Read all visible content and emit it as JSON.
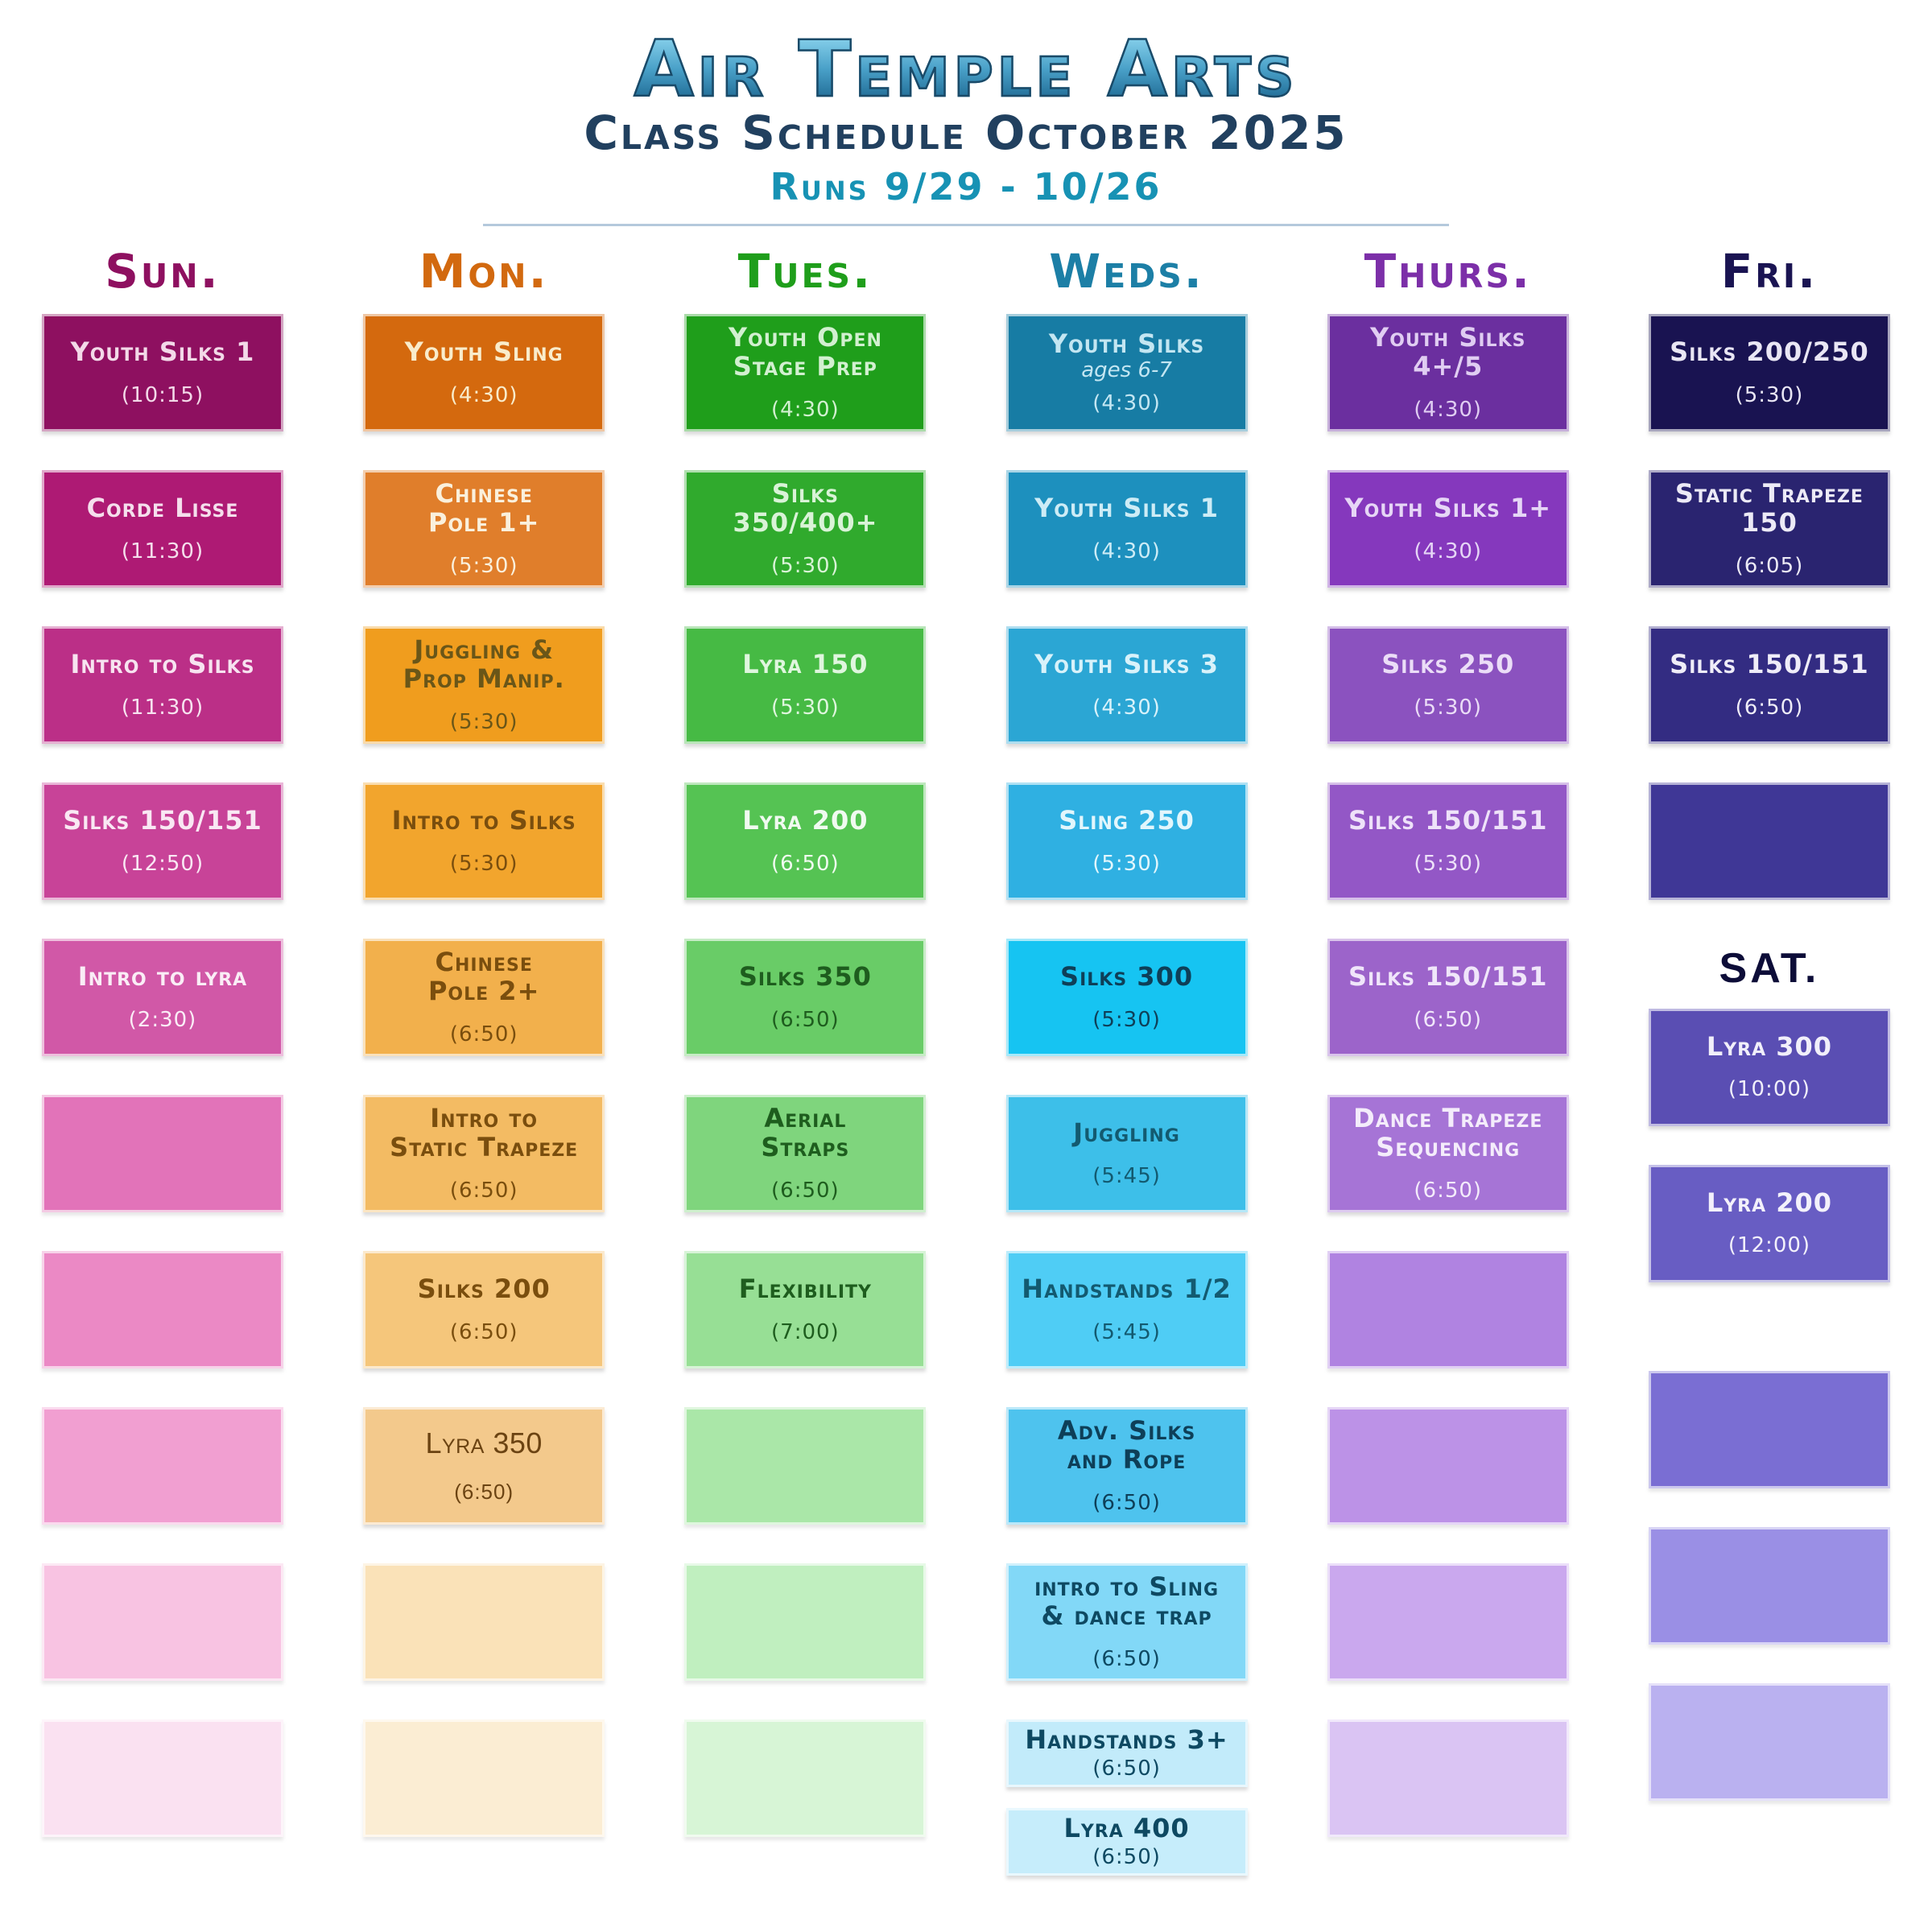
{
  "header": {
    "title": "Air Temple Arts",
    "subtitle": "Class Schedule October 2025",
    "runs": "Runs 9/29 - 10/26",
    "title_colors": [
      "#93DAF2",
      "#155E88"
    ],
    "subtitle_color": "#21405F",
    "runs_color": "#1792B4"
  },
  "columns": [
    {
      "sections": [
        {
          "label": "Sun.",
          "label_color": "#8E1060",
          "blocks": [
            {
              "name": "Youth Silks 1",
              "time": "(10:15)",
              "bg": "#8E1060",
              "fg": "#F3D9E8"
            },
            {
              "name": "Corde Lisse",
              "time": "(11:30)",
              "bg": "#AE1A74",
              "fg": "#F5DEEC"
            },
            {
              "name": "Intro to Silks",
              "time": "(11:30)",
              "bg": "#BB2F87",
              "fg": "#F7E3F0"
            },
            {
              "name": "Silks 150/151",
              "time": "(12:50)",
              "bg": "#C84398",
              "fg": "#F9E8F3"
            },
            {
              "name": "Intro to lyra",
              "time": "(2:30)",
              "bg": "#D158A7",
              "fg": "#FAEDF6"
            },
            {
              "bg": "#E273B9"
            },
            {
              "bg": "#EB89C5"
            },
            {
              "bg": "#F19FD1"
            },
            {
              "bg": "#F8C3E2"
            },
            {
              "bg": "#FAE1F1"
            }
          ]
        }
      ]
    },
    {
      "sections": [
        {
          "label": "Mon.",
          "label_color": "#D2690F",
          "blocks": [
            {
              "name": "Youth Sling",
              "time": "(4:30)",
              "bg": "#D4690E",
              "fg": "#F9ECCB"
            },
            {
              "name": "Chinese\nPole 1+",
              "time": "(5:30)",
              "bg": "#E07E2B",
              "fg": "#FAF0DC"
            },
            {
              "name": "Juggling &\nProp Manip.",
              "time": "(5:30)",
              "bg": "#F09D1E",
              "fg": "#6A5618"
            },
            {
              "name": "Intro to Silks",
              "time": "(5:30)",
              "bg": "#F2A52D",
              "fg": "#7A4E0E"
            },
            {
              "name": "Chinese\nPole 2+",
              "time": "(6:50)",
              "bg": "#F2B04C",
              "fg": "#7A4E0E"
            },
            {
              "name": "Intro to\nStatic Trapeze",
              "time": "(6:50)",
              "bg": "#F3BB63",
              "fg": "#7A4E0E"
            },
            {
              "name": "Silks 200",
              "time": "(6:50)",
              "bg": "#F5C67B",
              "fg": "#7A4E0E"
            },
            {
              "name": "Lyra 350",
              "time": "(6:50)",
              "bg": "#F3C98C",
              "fg": "#6B4312",
              "alt": true
            },
            {
              "bg": "#FAE2B8"
            },
            {
              "bg": "#FBEDD3"
            }
          ]
        }
      ]
    },
    {
      "sections": [
        {
          "label": "Tues.",
          "label_color": "#1F9E1B",
          "blocks": [
            {
              "name": "Youth Open\nStage Prep",
              "time": "(4:30)",
              "bg": "#1F9E1B",
              "fg": "#D2F0D0"
            },
            {
              "name": "Silks\n350/400+",
              "time": "(5:30)",
              "bg": "#30AA2D",
              "fg": "#D9F3D7"
            },
            {
              "name": "Lyra 150",
              "time": "(5:30)",
              "bg": "#46BA44",
              "fg": "#DFF6DE"
            },
            {
              "name": "Lyra 200",
              "time": "(6:50)",
              "bg": "#55C353",
              "fg": "#F0FAF0"
            },
            {
              "name": "Silks 350",
              "time": "(6:50)",
              "bg": "#69CC67",
              "fg": "#1E5D1E"
            },
            {
              "name": "Aerial\nStraps",
              "time": "(6:50)",
              "bg": "#7FD57D",
              "fg": "#1E5D1E"
            },
            {
              "name": "Flexibility",
              "time": "(7:00)",
              "bg": "#97DF95",
              "fg": "#1E5D1E"
            },
            {
              "bg": "#AAE7A8"
            },
            {
              "bg": "#C0EFBF"
            },
            {
              "bg": "#D7F5D6"
            }
          ]
        }
      ]
    },
    {
      "sections": [
        {
          "label": "Weds.",
          "label_color": "#1C7FA6",
          "blocks": [
            {
              "name": "Youth Silks",
              "note": "ages 6-7",
              "time": "(4:30)",
              "bg": "#177CA4",
              "fg": "#C3E6F2"
            },
            {
              "name": "Youth Silks 1",
              "time": "(4:30)",
              "bg": "#1D90BE",
              "fg": "#CDECF6"
            },
            {
              "name": "Youth Silks 3",
              "time": "(4:30)",
              "bg": "#2BA6D4",
              "fg": "#D8F2FA"
            },
            {
              "name": "Sling 250",
              "time": "(5:30)",
              "bg": "#2FB0E2",
              "fg": "#E2F6FC"
            },
            {
              "name": "Silks 300",
              "time": "(5:30)",
              "bg": "#16C4F2",
              "fg": "#0E3F58"
            },
            {
              "name": "Juggling",
              "time": "(5:45)",
              "bg": "#3DBFE9",
              "fg": "#135A70"
            },
            {
              "name": "Handstands 1/2",
              "time": "(5:45)",
              "bg": "#4FCDF5",
              "fg": "#135A70"
            },
            {
              "name": "Adv. Silks\nand Rope",
              "time": "(6:50)",
              "bg": "#4EC3EE",
              "fg": "#0E3F58"
            },
            {
              "name": "intro to Sling\n& dance trap",
              "time": "(6:50)",
              "bg": "#82D8F7",
              "fg": "#0E4962"
            },
            {
              "name": "Handstands 3+",
              "time": "(6:50)",
              "bg": "#C2EBFA",
              "fg": "#0E4962",
              "small": true
            },
            {
              "name": "Lyra 400",
              "time": "(6:50)",
              "bg": "#C6EDFB",
              "fg": "#0E4962",
              "small": true
            }
          ]
        }
      ]
    },
    {
      "sections": [
        {
          "label": "Thurs.",
          "label_color": "#7C2FA8",
          "blocks": [
            {
              "name": "Youth Silks\n4+/5",
              "time": "(4:30)",
              "bg": "#6B2F9F",
              "fg": "#E0CDF2"
            },
            {
              "name": "Youth Silks 1+",
              "time": "(4:30)",
              "bg": "#8538BD",
              "fg": "#E6D6F6"
            },
            {
              "name": "Silks 250",
              "time": "(5:30)",
              "bg": "#8B52BF",
              "fg": "#EBDDF7"
            },
            {
              "name": "Silks 150/151",
              "time": "(5:30)",
              "bg": "#9357C6",
              "fg": "#EEE2F9"
            },
            {
              "name": "Silks 150/151",
              "time": "(6:50)",
              "bg": "#9C64CA",
              "fg": "#F0E6FA"
            },
            {
              "name": "Dance Trapeze\nSequencing",
              "time": "(6:50)",
              "bg": "#A674D6",
              "fg": "#F4ECFB"
            },
            {
              "bg": "#B083E1"
            },
            {
              "bg": "#BC92E7"
            },
            {
              "bg": "#CAA8EE"
            },
            {
              "bg": "#DAC4F3"
            }
          ]
        }
      ]
    },
    {
      "sections": [
        {
          "label": "Fri.",
          "label_color": "#1A1452",
          "blocks": [
            {
              "name": "Silks 200/250",
              "time": "(5:30)",
              "bg": "#191351",
              "fg": "#E9E6F4"
            },
            {
              "name": "Static Trapeze\n150",
              "time": "(6:05)",
              "bg": "#2A2470",
              "fg": "#ECEAF6"
            },
            {
              "name": "Silks 150/151",
              "time": "(6:50)",
              "bg": "#332C82",
              "fg": "#EFEDF8"
            },
            {
              "bg": "#3F3796"
            }
          ]
        },
        {
          "label": "SAT.",
          "label_color": "#0D0D38",
          "alt": true,
          "mt": 58,
          "blocks": [
            {
              "name": "Lyra 300",
              "time": "(10:00)",
              "bg": "#5A4EB3",
              "fg": "#F1EFFA"
            },
            {
              "name": "Lyra 200",
              "time": "(12:00)",
              "bg": "#685DC3",
              "fg": "#F3F1FB"
            },
            {
              "bg": "#7A6ED3",
              "mt": 110
            },
            {
              "bg": "#9A8FE5"
            },
            {
              "bg": "#BAB1F0"
            }
          ]
        }
      ]
    }
  ]
}
